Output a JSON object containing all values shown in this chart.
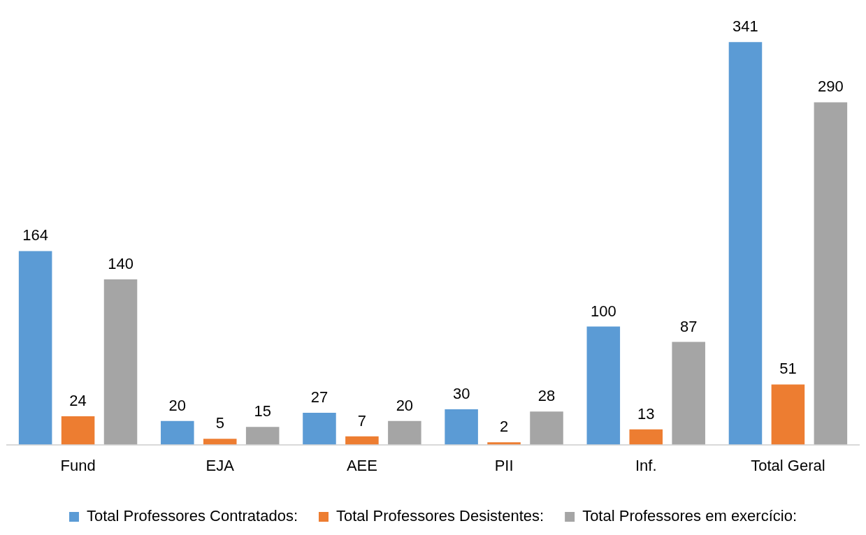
{
  "chart_data": {
    "type": "bar",
    "categories": [
      "Fund",
      "EJA",
      "AEE",
      "PII",
      "Inf.",
      "Total Geral"
    ],
    "series": [
      {
        "name": "Total Professores Contratados:",
        "color": "#5b9bd5",
        "values": [
          164,
          20,
          27,
          30,
          100,
          341
        ]
      },
      {
        "name": "Total Professores Desistentes:",
        "color": "#ed7d31",
        "values": [
          24,
          5,
          7,
          2,
          13,
          51
        ]
      },
      {
        "name": "Total Professores em exercício:",
        "color": "#a5a5a5",
        "values": [
          140,
          15,
          20,
          28,
          87,
          290
        ]
      }
    ],
    "data_labels": true,
    "grid": false,
    "legend": "bottom"
  }
}
